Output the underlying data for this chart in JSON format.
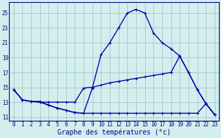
{
  "xlabel": "Graphe des températures (°c)",
  "background_color": "#d4eeee",
  "grid_color": "#9ec8c8",
  "line_color": "#0000aa",
  "xlim": [
    -0.5,
    23.5
  ],
  "ylim": [
    10.5,
    26.5
  ],
  "yticks": [
    11,
    13,
    15,
    17,
    19,
    21,
    23,
    25
  ],
  "xticks": [
    0,
    1,
    2,
    3,
    4,
    5,
    6,
    7,
    8,
    9,
    10,
    11,
    12,
    13,
    14,
    15,
    16,
    17,
    18,
    19,
    20,
    21,
    22,
    23
  ],
  "line1_x": [
    0,
    1,
    2,
    3,
    4,
    5,
    6,
    7,
    8,
    9,
    10,
    11,
    12,
    13,
    14,
    15,
    16,
    17,
    18,
    19,
    20,
    21,
    22,
    23
  ],
  "line1_y": [
    14.7,
    13.3,
    13.1,
    13.0,
    12.6,
    12.2,
    11.9,
    11.6,
    11.5,
    14.9,
    19.4,
    21.0,
    23.0,
    25.0,
    25.5,
    25.0,
    22.3,
    21.0,
    20.2,
    19.2,
    17.0,
    14.7,
    12.8,
    11.3
  ],
  "line2_x": [
    0,
    1,
    2,
    3,
    4,
    5,
    6,
    7,
    8,
    9,
    10,
    11,
    12,
    13,
    14,
    15,
    16,
    17,
    18,
    19,
    20,
    21,
    22,
    23
  ],
  "line2_y": [
    14.7,
    13.3,
    13.1,
    13.0,
    13.0,
    13.0,
    13.0,
    13.0,
    14.9,
    15.0,
    15.3,
    15.6,
    15.8,
    16.0,
    16.2,
    16.4,
    16.6,
    16.8,
    17.0,
    19.2,
    17.0,
    14.7,
    12.8,
    11.3
  ],
  "line3_x": [
    0,
    1,
    2,
    3,
    4,
    5,
    6,
    7,
    8,
    9,
    10,
    11,
    12,
    13,
    14,
    15,
    16,
    17,
    18,
    19,
    20,
    21,
    22,
    23
  ],
  "line3_y": [
    14.7,
    13.3,
    13.1,
    13.1,
    12.6,
    12.2,
    11.9,
    11.6,
    11.5,
    11.5,
    11.5,
    11.5,
    11.5,
    11.5,
    11.5,
    11.5,
    11.5,
    11.5,
    11.5,
    11.5,
    11.5,
    11.5,
    12.8,
    11.3
  ],
  "marker": "+",
  "markersize": 3,
  "linewidth": 1.0,
  "xlabel_fontsize": 7,
  "tick_fontsize": 5.5
}
